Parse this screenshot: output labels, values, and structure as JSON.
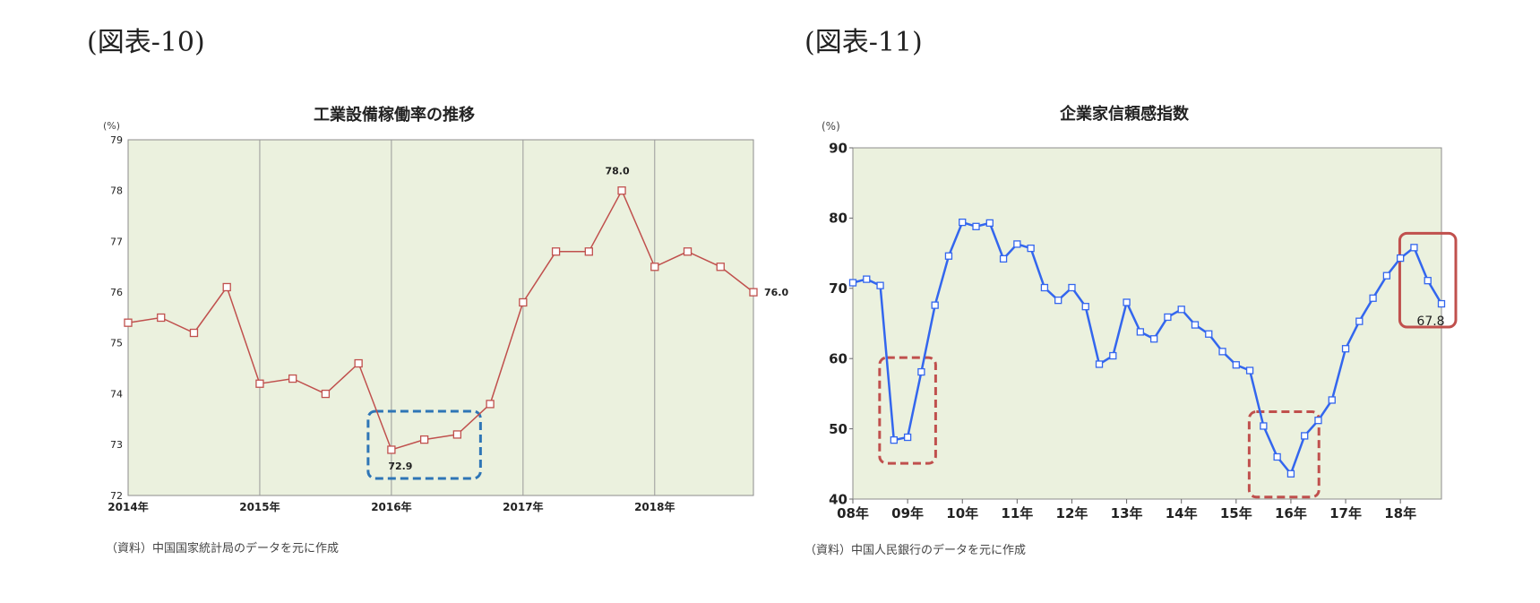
{
  "left_figure": {
    "label": "(図表-10)",
    "source": "（資料）中国国家統計局のデータを元に作成",
    "chart_data": {
      "type": "line",
      "title": "工業設備稼働率の推移",
      "ylabel": "(%)",
      "xlabel": "",
      "ylim": [
        72,
        79
      ],
      "yticks": [
        72,
        73,
        74,
        75,
        76,
        77,
        78,
        79
      ],
      "xtick_labels": [
        "2014年",
        "2015年",
        "2016年",
        "2017年",
        "2018年"
      ],
      "x": [
        "2014Q1",
        "2014Q2",
        "2014Q3",
        "2014Q4",
        "2015Q1",
        "2015Q2",
        "2015Q3",
        "2015Q4",
        "2016Q1",
        "2016Q2",
        "2016Q3",
        "2016Q4",
        "2017Q1",
        "2017Q2",
        "2017Q3",
        "2017Q4",
        "2018Q1",
        "2018Q2",
        "2018Q3",
        "2018Q4"
      ],
      "values": [
        75.4,
        75.5,
        75.2,
        76.1,
        74.2,
        74.3,
        74.0,
        74.6,
        72.9,
        73.1,
        73.2,
        73.8,
        75.8,
        76.8,
        76.8,
        78.0,
        76.5,
        76.8,
        76.5,
        76.0
      ],
      "data_labels": [
        {
          "x": "2016Q1",
          "text": "72.9"
        },
        {
          "x": "2017Q4",
          "text": "78.0"
        },
        {
          "x": "2018Q4",
          "text": "76.0"
        }
      ],
      "highlight": [
        {
          "from": "2016Q1",
          "to": "2016Q3",
          "color": "#2e75b6",
          "style": "dashed"
        }
      ],
      "colors": {
        "line": "#c0504d",
        "plot_bg": "#ebf1de"
      },
      "grid": "vertical year separators"
    }
  },
  "right_figure": {
    "label": "(図表-11)",
    "source": "（資料）中国人民銀行のデータを元に作成",
    "chart_data": {
      "type": "line",
      "title": "企業家信頼感指数",
      "ylabel": "(%)",
      "xlabel": "",
      "ylim": [
        40,
        90
      ],
      "yticks": [
        40,
        50,
        60,
        70,
        80,
        90
      ],
      "xtick_labels": [
        "08年",
        "09年",
        "10年",
        "11年",
        "12年",
        "13年",
        "14年",
        "15年",
        "16年",
        "17年",
        "18年"
      ],
      "x": [
        "2008Q1",
        "2008Q2",
        "2008Q3",
        "2008Q4",
        "2009Q1",
        "2009Q2",
        "2009Q3",
        "2009Q4",
        "2010Q1",
        "2010Q2",
        "2010Q3",
        "2010Q4",
        "2011Q1",
        "2011Q2",
        "2011Q3",
        "2011Q4",
        "2012Q1",
        "2012Q2",
        "2012Q3",
        "2012Q4",
        "2013Q1",
        "2013Q2",
        "2013Q3",
        "2013Q4",
        "2014Q1",
        "2014Q2",
        "2014Q3",
        "2014Q4",
        "2015Q1",
        "2015Q2",
        "2015Q3",
        "2015Q4",
        "2016Q1",
        "2016Q2",
        "2016Q3",
        "2016Q4",
        "2017Q1",
        "2017Q2",
        "2017Q3",
        "2017Q4",
        "2018Q1",
        "2018Q2",
        "2018Q3",
        "2018Q4"
      ],
      "values": [
        70.8,
        71.3,
        70.4,
        48.4,
        48.8,
        58.1,
        67.6,
        74.6,
        79.4,
        78.8,
        79.3,
        74.2,
        76.3,
        75.7,
        70.1,
        68.3,
        70.1,
        67.4,
        59.2,
        60.4,
        68.0,
        63.8,
        62.8,
        65.9,
        67.0,
        64.8,
        63.5,
        61.0,
        59.1,
        58.3,
        50.4,
        46.0,
        43.6,
        49.0,
        51.2,
        54.1,
        61.4,
        65.3,
        68.6,
        71.8,
        74.3,
        75.8,
        71.1,
        67.8
      ],
      "data_labels": [
        {
          "x": "2018Q4",
          "text": "67.8"
        }
      ],
      "highlight": [
        {
          "from": "2008Q4",
          "to": "2009Q2",
          "color": "#c0504d",
          "style": "dashed"
        },
        {
          "from": "2015Q3",
          "to": "2016Q2",
          "color": "#c0504d",
          "style": "dashed"
        },
        {
          "from": "2018Q2",
          "to": "2018Q4",
          "color": "#c0504d",
          "style": "solid"
        }
      ],
      "colors": {
        "line": "#3366ee",
        "plot_bg": "#ebf1de"
      },
      "grid": "none"
    }
  }
}
